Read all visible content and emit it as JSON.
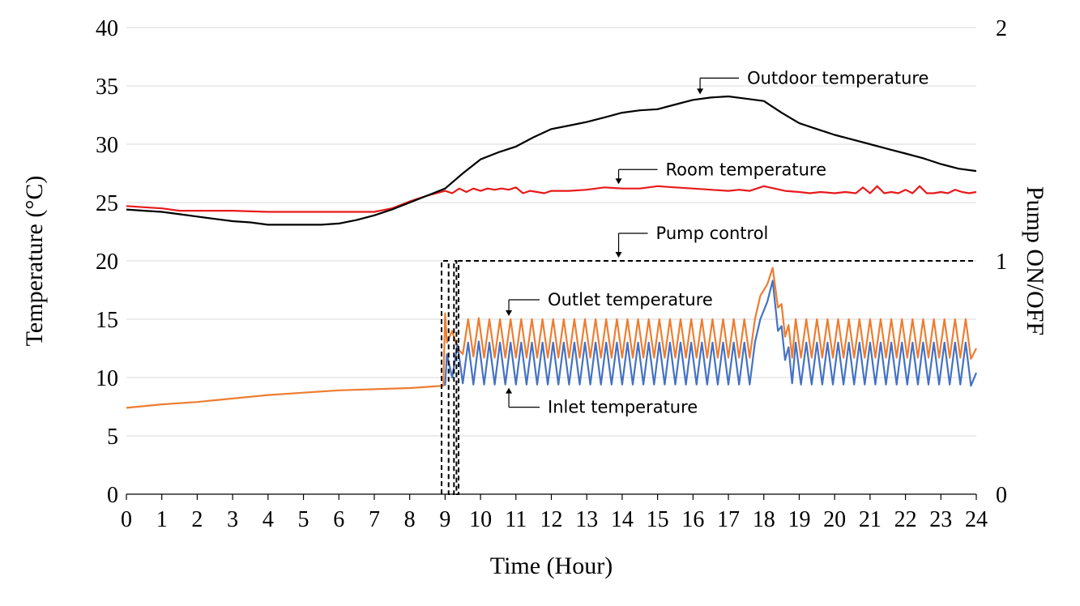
{
  "chart_data": {
    "type": "line",
    "title": "",
    "xlabel": "Time (Hour)",
    "ylabel": "Temperature (°C)",
    "y2label": "Pump ON/OFF",
    "xlim": [
      0,
      24
    ],
    "ylim": [
      0,
      40
    ],
    "y2lim": [
      0,
      2
    ],
    "xticks": [
      "0",
      "1",
      "2",
      "3",
      "4",
      "5",
      "6",
      "7",
      "8",
      "9",
      "10",
      "11",
      "12",
      "13",
      "14",
      "15",
      "16",
      "17",
      "18",
      "19",
      "20",
      "21",
      "22",
      "23",
      "24"
    ],
    "yticks": [
      "0",
      "5",
      "10",
      "15",
      "20",
      "25",
      "30",
      "35",
      "40"
    ],
    "y2ticks": [
      "0",
      "1",
      "2"
    ],
    "grid": "horizontal",
    "colors": {
      "outdoor": "#000000",
      "room": "#e8191b",
      "outlet": "#ed7d31",
      "inlet": "#4472c4",
      "pump": "#000000",
      "grid": "#d9d9d9"
    },
    "series": [
      {
        "key": "outdoor",
        "name": "Outdoor temperature",
        "axis": "left",
        "x": [
          0,
          0.5,
          1,
          1.5,
          2,
          2.5,
          3,
          3.5,
          4,
          4.5,
          5,
          5.5,
          6,
          6.5,
          7,
          7.5,
          8,
          8.5,
          9,
          9.5,
          10,
          10.5,
          11,
          11.5,
          12,
          12.5,
          13,
          13.5,
          14,
          14.5,
          15,
          15.5,
          16,
          16.5,
          17,
          17.5,
          18,
          18.5,
          19,
          19.5,
          20,
          20.5,
          21,
          21.5,
          22,
          22.5,
          23,
          23.5,
          24
        ],
        "y": [
          24.4,
          24.3,
          24.2,
          24.0,
          23.8,
          23.6,
          23.4,
          23.3,
          23.1,
          23.1,
          23.1,
          23.1,
          23.2,
          23.5,
          23.9,
          24.4,
          25.0,
          25.6,
          26.2,
          27.5,
          28.7,
          29.3,
          29.8,
          30.6,
          31.3,
          31.6,
          31.9,
          32.3,
          32.7,
          32.9,
          33.0,
          33.4,
          33.8,
          34.0,
          34.1,
          33.9,
          33.7,
          32.7,
          31.8,
          31.3,
          30.8,
          30.4,
          30.0,
          29.6,
          29.2,
          28.8,
          28.3,
          27.9,
          27.7
        ]
      },
      {
        "key": "room",
        "name": "Room temperature",
        "axis": "left",
        "x": [
          0,
          0.5,
          1,
          1.5,
          2,
          3,
          4,
          5,
          6,
          7,
          7.5,
          8,
          8.5,
          9,
          9.2,
          9.4,
          9.6,
          9.8,
          10,
          10.2,
          10.4,
          10.6,
          10.8,
          11,
          11.2,
          11.4,
          11.6,
          11.8,
          12,
          12.5,
          13,
          13.5,
          14,
          14.5,
          15,
          15.5,
          16,
          16.5,
          17,
          17.3,
          17.6,
          18,
          18.3,
          18.6,
          19,
          19.3,
          19.6,
          20,
          20.3,
          20.6,
          20.8,
          21,
          21.2,
          21.4,
          21.6,
          21.8,
          22,
          22.2,
          22.4,
          22.6,
          22.8,
          23,
          23.2,
          23.4,
          23.6,
          23.8,
          24
        ],
        "y": [
          24.7,
          24.6,
          24.5,
          24.3,
          24.3,
          24.3,
          24.2,
          24.2,
          24.2,
          24.2,
          24.5,
          25.1,
          25.6,
          26.0,
          25.8,
          26.2,
          25.9,
          26.2,
          26.0,
          26.2,
          26.1,
          26.2,
          26.1,
          26.3,
          25.8,
          26.0,
          25.9,
          25.8,
          26.0,
          26.0,
          26.1,
          26.3,
          26.2,
          26.2,
          26.4,
          26.3,
          26.2,
          26.1,
          26.0,
          26.1,
          26.0,
          26.4,
          26.2,
          26.0,
          25.9,
          25.8,
          25.9,
          25.8,
          25.9,
          25.8,
          26.3,
          25.8,
          26.4,
          25.8,
          25.9,
          25.8,
          26.1,
          25.8,
          26.4,
          25.8,
          25.8,
          25.9,
          25.8,
          26.1,
          25.9,
          25.8,
          25.9
        ]
      },
      {
        "key": "outlet",
        "name": "Outlet temperature",
        "axis": "left",
        "x": [
          0,
          1,
          2,
          3,
          4,
          5,
          6,
          7,
          8,
          8.95,
          9.0,
          9.05,
          9.2,
          9.35,
          9.5,
          9.65,
          9.8,
          9.95,
          10.1,
          10.25,
          10.4,
          10.55,
          10.7,
          10.85,
          11.0,
          11.15,
          11.3,
          11.45,
          11.6,
          11.75,
          11.9,
          12.05,
          12.2,
          12.35,
          12.5,
          12.65,
          12.8,
          12.95,
          13.1,
          13.25,
          13.4,
          13.55,
          13.7,
          13.85,
          14.0,
          14.15,
          14.3,
          14.45,
          14.6,
          14.75,
          14.9,
          15.05,
          15.2,
          15.35,
          15.5,
          15.65,
          15.8,
          15.95,
          16.1,
          16.25,
          16.4,
          16.55,
          16.7,
          16.85,
          17.0,
          17.15,
          17.3,
          17.45,
          17.6,
          17.75,
          17.9,
          18.1,
          18.25,
          18.4,
          18.5,
          18.6,
          18.7,
          18.8,
          18.9,
          19.05,
          19.2,
          19.35,
          19.5,
          19.65,
          19.8,
          19.95,
          20.1,
          20.25,
          20.4,
          20.55,
          20.7,
          20.85,
          21.0,
          21.15,
          21.3,
          21.45,
          21.6,
          21.75,
          21.9,
          22.05,
          22.2,
          22.35,
          22.5,
          22.65,
          22.8,
          22.95,
          23.1,
          23.25,
          23.4,
          23.55,
          23.7,
          23.85,
          24
        ],
        "y": [
          7.4,
          7.7,
          7.9,
          8.2,
          8.5,
          8.7,
          8.9,
          9.0,
          9.1,
          9.3,
          15.5,
          13.0,
          14.0,
          12.5,
          12.0,
          15.0,
          11.8,
          15.1,
          11.7,
          15.0,
          11.7,
          15.0,
          11.7,
          15.0,
          11.7,
          15.0,
          11.7,
          15.0,
          11.7,
          15.0,
          11.7,
          15.0,
          11.7,
          15.0,
          11.7,
          15.0,
          11.7,
          15.0,
          11.7,
          15.0,
          11.7,
          15.0,
          11.7,
          15.0,
          11.7,
          15.0,
          11.7,
          15.0,
          11.7,
          15.0,
          11.7,
          15.0,
          11.7,
          15.0,
          11.7,
          15.0,
          11.7,
          15.0,
          11.7,
          15.0,
          11.7,
          15.0,
          11.7,
          15.0,
          11.7,
          15.0,
          11.7,
          15.0,
          11.7,
          15.0,
          17.0,
          18.0,
          19.4,
          16.0,
          16.3,
          13.5,
          14.5,
          11.7,
          15.0,
          11.7,
          15.0,
          11.7,
          15.0,
          11.7,
          15.0,
          11.7,
          15.0,
          11.7,
          15.0,
          11.7,
          15.0,
          11.7,
          15.0,
          11.7,
          15.0,
          11.7,
          15.0,
          11.7,
          15.0,
          11.7,
          15.0,
          11.7,
          15.0,
          11.7,
          15.0,
          11.7,
          15.0,
          11.7,
          15.0,
          11.7,
          15.0,
          11.6,
          12.5
        ]
      },
      {
        "key": "inlet",
        "name": "Inlet temperature",
        "axis": "left",
        "x": [
          9.0,
          9.05,
          9.2,
          9.35,
          9.5,
          9.65,
          9.8,
          9.95,
          10.1,
          10.25,
          10.4,
          10.55,
          10.7,
          10.85,
          11.0,
          11.15,
          11.3,
          11.45,
          11.6,
          11.75,
          11.9,
          12.05,
          12.2,
          12.35,
          12.5,
          12.65,
          12.8,
          12.95,
          13.1,
          13.25,
          13.4,
          13.55,
          13.7,
          13.85,
          14.0,
          14.15,
          14.3,
          14.45,
          14.6,
          14.75,
          14.9,
          15.05,
          15.2,
          15.35,
          15.5,
          15.65,
          15.8,
          15.95,
          16.1,
          16.25,
          16.4,
          16.55,
          16.7,
          16.85,
          17.0,
          17.15,
          17.3,
          17.45,
          17.6,
          17.75,
          17.9,
          18.1,
          18.25,
          18.4,
          18.5,
          18.6,
          18.7,
          18.8,
          18.9,
          19.05,
          19.2,
          19.35,
          19.5,
          19.65,
          19.8,
          19.95,
          20.1,
          20.25,
          20.4,
          20.55,
          20.7,
          20.85,
          21.0,
          21.15,
          21.3,
          21.45,
          21.6,
          21.75,
          21.9,
          22.05,
          22.2,
          22.35,
          22.5,
          22.65,
          22.8,
          22.95,
          23.1,
          23.25,
          23.4,
          23.55,
          23.7,
          23.85,
          24
        ],
        "y": [
          9.3,
          12.0,
          10.0,
          12.8,
          9.5,
          13.0,
          9.4,
          13.1,
          9.4,
          13.0,
          9.4,
          13.0,
          9.4,
          13.0,
          9.4,
          13.0,
          9.4,
          13.0,
          9.4,
          13.0,
          9.4,
          13.0,
          9.4,
          13.0,
          9.4,
          13.0,
          9.4,
          13.0,
          9.4,
          13.0,
          9.4,
          13.0,
          9.4,
          13.0,
          9.4,
          13.0,
          9.4,
          13.0,
          9.4,
          13.0,
          9.4,
          13.0,
          9.4,
          13.0,
          9.4,
          13.0,
          9.4,
          13.0,
          9.4,
          13.0,
          9.4,
          13.0,
          9.4,
          13.0,
          9.4,
          13.0,
          9.4,
          13.0,
          9.4,
          13.0,
          15.0,
          16.5,
          18.3,
          14.0,
          14.4,
          11.5,
          12.6,
          9.5,
          13.0,
          9.4,
          13.0,
          9.4,
          13.0,
          9.4,
          13.0,
          9.4,
          13.0,
          9.4,
          13.0,
          9.4,
          13.0,
          9.4,
          13.0,
          9.4,
          13.0,
          9.4,
          13.0,
          9.4,
          13.0,
          9.4,
          13.0,
          9.4,
          13.0,
          9.4,
          13.0,
          9.4,
          13.0,
          9.4,
          13.0,
          9.4,
          13.0,
          9.3,
          10.4
        ]
      },
      {
        "key": "pump",
        "name": "Pump control",
        "axis": "right",
        "dashed": true,
        "x": [
          8.9,
          8.9,
          9.1,
          9.1,
          9.25,
          9.25,
          9.32,
          9.32,
          9.38,
          9.38,
          24
        ],
        "y": [
          0,
          1,
          1,
          0,
          0,
          1,
          1,
          0,
          0,
          1,
          1
        ]
      }
    ],
    "annotations": [
      {
        "key": "outdoor",
        "text": "Outdoor temperature",
        "x": 16.2,
        "y": 34.0
      },
      {
        "key": "room",
        "text": "Room temperature",
        "x": 13.9,
        "y": 26.3
      },
      {
        "key": "pump",
        "text": "Pump control",
        "x": 13.9,
        "y": 20.0
      },
      {
        "key": "outlet",
        "text": "Outlet temperature",
        "x": 10.8,
        "y": 15.0
      },
      {
        "key": "inlet",
        "text": "Inlet temperature",
        "x": 10.8,
        "y": 9.4
      }
    ]
  }
}
